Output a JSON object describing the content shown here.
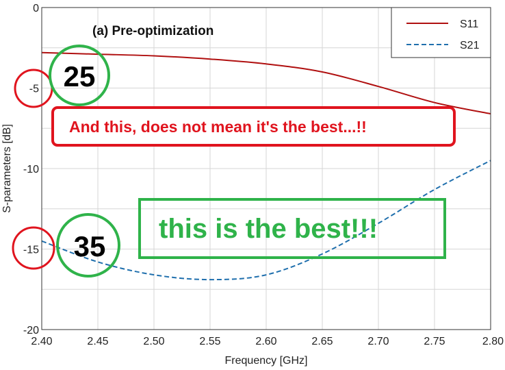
{
  "chart_data": {
    "type": "line",
    "subtitle": "(a) Pre-optimization",
    "xlabel": "Frequency [GHz]",
    "ylabel": "S-parameters [dB]",
    "xlim": [
      2.4,
      2.8
    ],
    "ylim": [
      -20,
      0
    ],
    "x_ticks": [
      "2.40",
      "2.45",
      "2.50",
      "2.55",
      "2.60",
      "2.65",
      "2.70",
      "2.75",
      "2.80"
    ],
    "y_ticks": [
      "0",
      "-5",
      "-10",
      "-15",
      "-20"
    ],
    "grid": true,
    "legend_position": "top-right",
    "series": [
      {
        "name": "S11",
        "color": "#b01010",
        "style": "solid",
        "x": [
          2.4,
          2.45,
          2.5,
          2.55,
          2.6,
          2.65,
          2.7,
          2.75,
          2.8
        ],
        "y": [
          -2.8,
          -2.9,
          -3.0,
          -3.2,
          -3.5,
          -4.0,
          -4.9,
          -5.9,
          -6.6
        ]
      },
      {
        "name": "S21",
        "color": "#1f6fad",
        "style": "dashed",
        "x": [
          2.4,
          2.45,
          2.5,
          2.55,
          2.6,
          2.65,
          2.7,
          2.75,
          2.8
        ],
        "y": [
          -14.5,
          -15.8,
          -16.6,
          -16.9,
          -16.6,
          -15.3,
          -13.4,
          -11.3,
          -9.5
        ]
      }
    ],
    "annotations": {
      "circled_numbers": [
        "25",
        "35"
      ],
      "red_box_text": "And this, does not mean it's the best...!!",
      "green_box_text": "this is the best!!!",
      "red_color": "#e0141e",
      "green_color": "#2fb34a"
    }
  }
}
